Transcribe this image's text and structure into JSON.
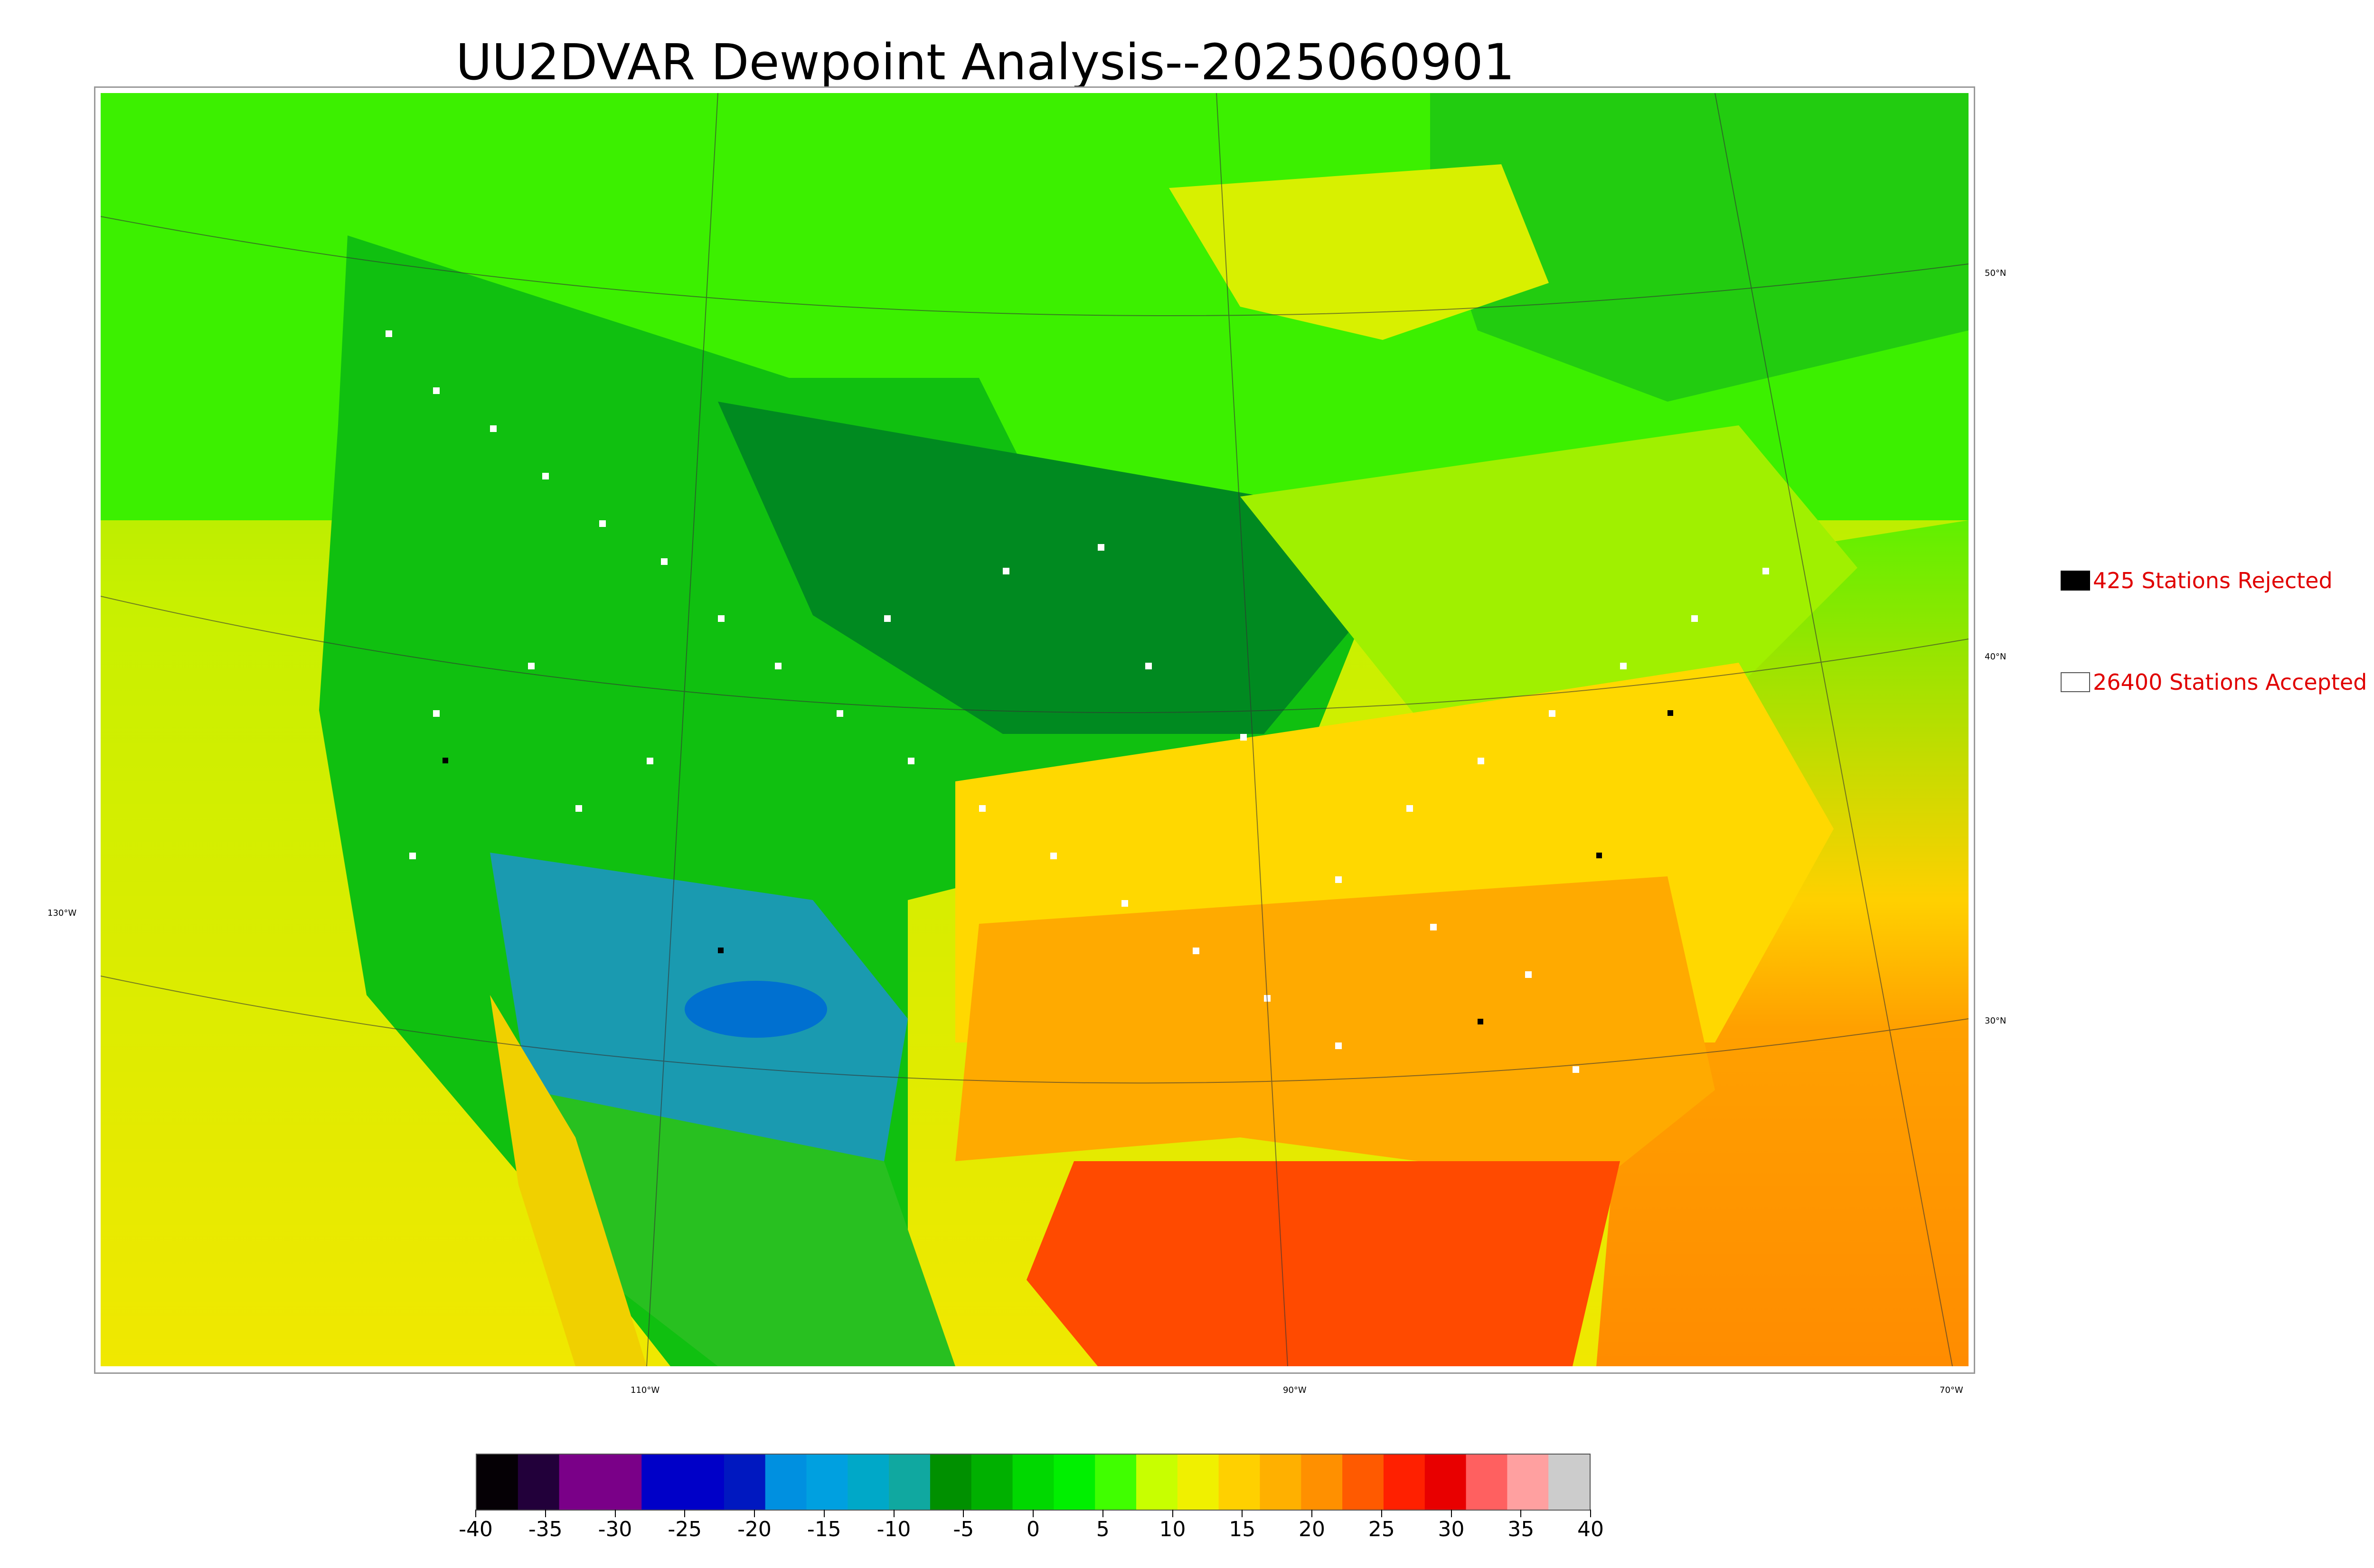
{
  "title": "UU2DVAR Dewpoint Analysis--2025060901",
  "map": {
    "lat_labels": [
      "50°N",
      "40°N",
      "30°N",
      "130°W"
    ],
    "lon_labels": [
      "110°W",
      "90°W",
      "70°W"
    ]
  },
  "legend": {
    "rejected_label": "425 Stations Rejected",
    "accepted_label": "26400 Stations Accepted",
    "rejected_color": "#000000",
    "accepted_color": "#ffffff"
  },
  "colorbar": {
    "ticks": [
      "-40",
      "-35",
      "-30",
      "-25",
      "-20",
      "-15",
      "-10",
      "-5",
      "0",
      "5",
      "10",
      "15",
      "20",
      "25",
      "30",
      "35",
      "40"
    ],
    "colors": [
      "#050005",
      "#22003a",
      "#7a0088",
      "#7a0088",
      "#0000c8",
      "#0000c8",
      "#0018c0",
      "#0090e0",
      "#00a0e0",
      "#00a8c8",
      "#10a8a0",
      "#009000",
      "#00b000",
      "#00d800",
      "#00f000",
      "#40ff00",
      "#c8ff00",
      "#f0f000",
      "#ffd000",
      "#ffb000",
      "#ff9000",
      "#ff5a00",
      "#ff2000",
      "#e80000",
      "#ff6060",
      "#ffa0a0",
      "#cccccc"
    ]
  },
  "regions": {
    "canada": "#20d820",
    "northern_plains": "#008c00",
    "great_lakes": "#5ae800",
    "east_coast": "#e8e800",
    "southeast": "#ffb800",
    "gulf": "#ff4000",
    "southwest": "#1e9aa8",
    "pacific": "#e6f000",
    "atlantic": "#ff9a00"
  }
}
